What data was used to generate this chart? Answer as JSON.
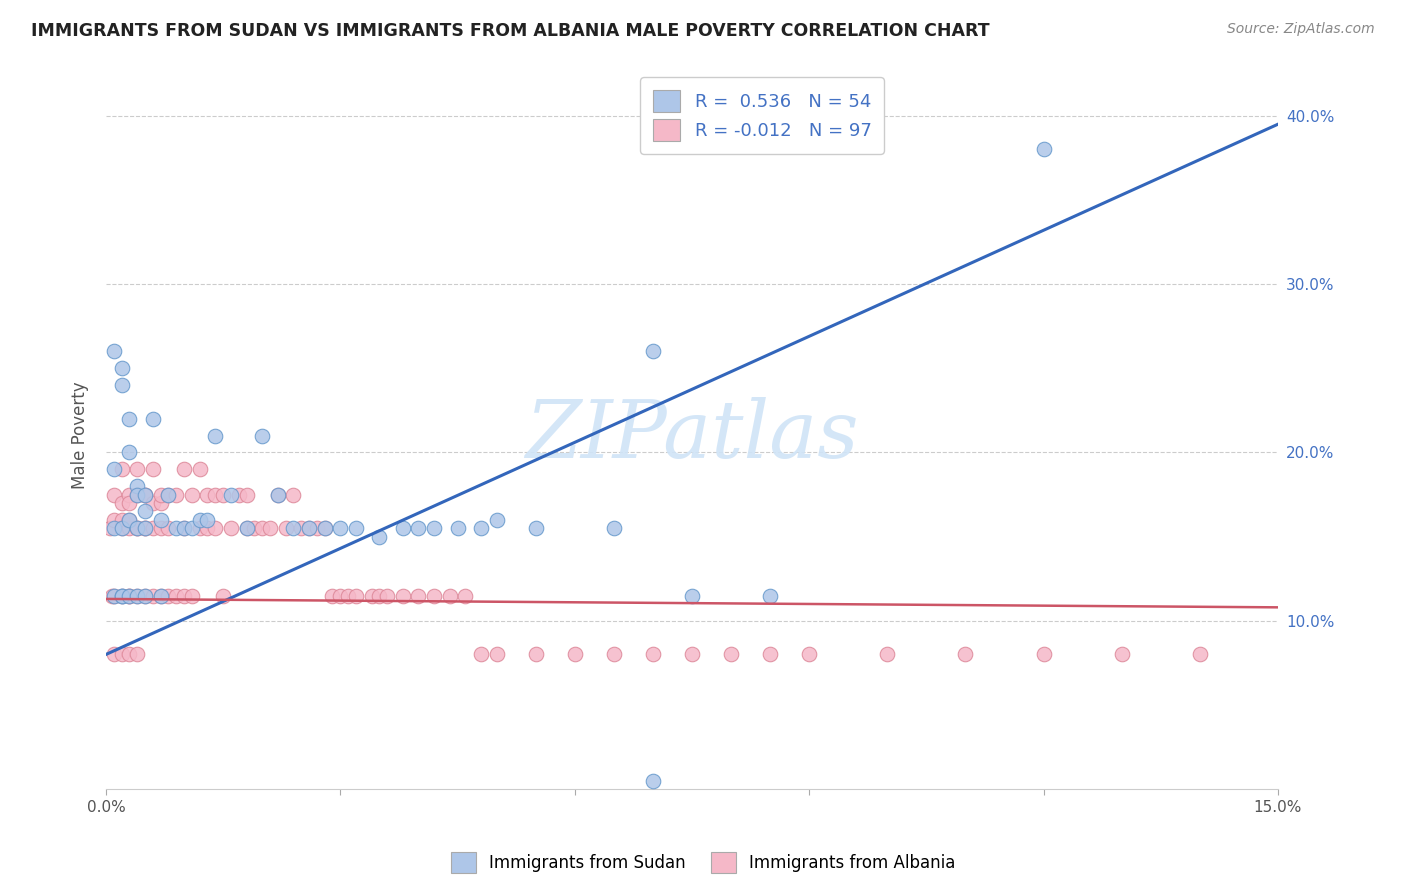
{
  "title": "IMMIGRANTS FROM SUDAN VS IMMIGRANTS FROM ALBANIA MALE POVERTY CORRELATION CHART",
  "source": "Source: ZipAtlas.com",
  "ylabel": "Male Poverty",
  "xlim": [
    0.0,
    0.15
  ],
  "ylim": [
    0.0,
    0.42
  ],
  "xtick_positions": [
    0.0,
    0.03,
    0.06,
    0.09,
    0.12,
    0.15
  ],
  "xticklabels": [
    "0.0%",
    "",
    "",
    "",
    "",
    "15.0%"
  ],
  "yticks_right": [
    0.1,
    0.2,
    0.3,
    0.4
  ],
  "ytick_right_labels": [
    "10.0%",
    "20.0%",
    "30.0%",
    "40.0%"
  ],
  "legend_sudan_r": "0.536",
  "legend_sudan_n": "54",
  "legend_albania_r": "-0.012",
  "legend_albania_n": "97",
  "sudan_color": "#aec6e8",
  "sudan_edge_color": "#6699cc",
  "albania_color": "#f5b8c8",
  "albania_edge_color": "#dd8899",
  "sudan_line_color": "#3366bb",
  "albania_line_color": "#cc5566",
  "albania_line_style": "solid",
  "watermark": "ZIPatlas",
  "watermark_color": "#d0e4f7",
  "sudan_line_x0": 0.0,
  "sudan_line_y0": 0.08,
  "sudan_line_x1": 0.15,
  "sudan_line_y1": 0.395,
  "albania_line_x0": 0.0,
  "albania_line_y0": 0.113,
  "albania_line_x1": 0.15,
  "albania_line_y1": 0.108,
  "sudan_scatter_x": [
    0.001,
    0.001,
    0.001,
    0.001,
    0.002,
    0.002,
    0.002,
    0.002,
    0.002,
    0.003,
    0.003,
    0.003,
    0.003,
    0.004,
    0.004,
    0.004,
    0.004,
    0.005,
    0.005,
    0.005,
    0.005,
    0.006,
    0.007,
    0.007,
    0.008,
    0.009,
    0.01,
    0.011,
    0.012,
    0.013,
    0.014,
    0.016,
    0.018,
    0.02,
    0.022,
    0.024,
    0.026,
    0.028,
    0.03,
    0.032,
    0.035,
    0.038,
    0.04,
    0.042,
    0.045,
    0.048,
    0.05,
    0.055,
    0.065,
    0.07,
    0.075,
    0.085,
    0.12,
    0.07
  ],
  "sudan_scatter_y": [
    0.19,
    0.26,
    0.155,
    0.115,
    0.25,
    0.24,
    0.155,
    0.115,
    0.115,
    0.22,
    0.2,
    0.16,
    0.115,
    0.18,
    0.175,
    0.155,
    0.115,
    0.175,
    0.165,
    0.155,
    0.115,
    0.22,
    0.16,
    0.115,
    0.175,
    0.155,
    0.155,
    0.155,
    0.16,
    0.16,
    0.21,
    0.175,
    0.155,
    0.21,
    0.175,
    0.155,
    0.155,
    0.155,
    0.155,
    0.155,
    0.15,
    0.155,
    0.155,
    0.155,
    0.155,
    0.155,
    0.16,
    0.155,
    0.155,
    0.005,
    0.115,
    0.115,
    0.38,
    0.26
  ],
  "albania_scatter_x": [
    0.0005,
    0.0008,
    0.001,
    0.001,
    0.001,
    0.001,
    0.002,
    0.002,
    0.002,
    0.002,
    0.002,
    0.002,
    0.003,
    0.003,
    0.003,
    0.003,
    0.003,
    0.003,
    0.003,
    0.004,
    0.004,
    0.004,
    0.004,
    0.004,
    0.004,
    0.005,
    0.005,
    0.005,
    0.005,
    0.005,
    0.006,
    0.006,
    0.006,
    0.006,
    0.007,
    0.007,
    0.007,
    0.007,
    0.008,
    0.008,
    0.008,
    0.009,
    0.009,
    0.01,
    0.01,
    0.01,
    0.011,
    0.011,
    0.012,
    0.012,
    0.013,
    0.013,
    0.014,
    0.014,
    0.015,
    0.015,
    0.016,
    0.017,
    0.018,
    0.018,
    0.019,
    0.02,
    0.021,
    0.022,
    0.023,
    0.024,
    0.025,
    0.026,
    0.027,
    0.028,
    0.029,
    0.03,
    0.031,
    0.032,
    0.034,
    0.035,
    0.036,
    0.038,
    0.04,
    0.042,
    0.044,
    0.046,
    0.048,
    0.05,
    0.055,
    0.06,
    0.065,
    0.07,
    0.075,
    0.08,
    0.085,
    0.09,
    0.1,
    0.11,
    0.12,
    0.13,
    0.14
  ],
  "albania_scatter_y": [
    0.155,
    0.115,
    0.175,
    0.16,
    0.115,
    0.08,
    0.19,
    0.17,
    0.16,
    0.155,
    0.115,
    0.08,
    0.175,
    0.17,
    0.155,
    0.16,
    0.115,
    0.115,
    0.08,
    0.19,
    0.175,
    0.155,
    0.155,
    0.115,
    0.08,
    0.175,
    0.175,
    0.155,
    0.155,
    0.115,
    0.19,
    0.17,
    0.155,
    0.115,
    0.17,
    0.175,
    0.155,
    0.115,
    0.175,
    0.155,
    0.115,
    0.175,
    0.115,
    0.19,
    0.155,
    0.115,
    0.175,
    0.115,
    0.19,
    0.155,
    0.175,
    0.155,
    0.175,
    0.155,
    0.175,
    0.115,
    0.155,
    0.175,
    0.175,
    0.155,
    0.155,
    0.155,
    0.155,
    0.175,
    0.155,
    0.175,
    0.155,
    0.155,
    0.155,
    0.155,
    0.115,
    0.115,
    0.115,
    0.115,
    0.115,
    0.115,
    0.115,
    0.115,
    0.115,
    0.115,
    0.115,
    0.115,
    0.08,
    0.08,
    0.08,
    0.08,
    0.08,
    0.08,
    0.08,
    0.08,
    0.08,
    0.08,
    0.08,
    0.08,
    0.08,
    0.08,
    0.08
  ]
}
